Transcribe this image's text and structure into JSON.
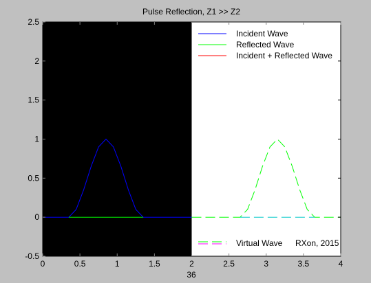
{
  "chart_data": {
    "type": "line",
    "title": "Pulse Reflection, Z1 >> Z2",
    "xlabel": "36",
    "ylabel": "",
    "xlim": [
      0,
      4
    ],
    "ylim": [
      -0.5,
      2.5
    ],
    "xticks": [
      0,
      0.5,
      1,
      1.5,
      2,
      2.5,
      3,
      3.5,
      4
    ],
    "xtick_labels": [
      "0",
      "0.5",
      "1",
      "1.5",
      "2",
      "2.5",
      "3",
      "3.5",
      "4"
    ],
    "yticks": [
      -0.5,
      0,
      0.5,
      1,
      1.5,
      2,
      2.5
    ],
    "ytick_labels": [
      "-0.5",
      "0",
      "0.5",
      "1",
      "1.5",
      "2",
      "2.5"
    ],
    "grid": false,
    "regions": [
      {
        "x_range": [
          0,
          2
        ],
        "color": "#000000"
      },
      {
        "x_range": [
          2,
          4
        ],
        "color": "#ffffff"
      }
    ],
    "series": [
      {
        "name": "Incident Wave",
        "color": "#0000ff",
        "style": "solid",
        "x": [
          0,
          0.35,
          0.45,
          0.55,
          0.65,
          0.75,
          0.85,
          0.95,
          1.05,
          1.15,
          1.25,
          1.35,
          2
        ],
        "y": [
          0,
          0,
          0.1,
          0.35,
          0.65,
          0.9,
          1.0,
          0.9,
          0.65,
          0.35,
          0.1,
          0,
          0
        ]
      },
      {
        "name": "Reflected Wave",
        "color": "#00ff00",
        "style": "solid",
        "x": [
          0.35,
          1.35
        ],
        "y": [
          0,
          0
        ]
      },
      {
        "name": "Incident + Reflected Wave",
        "color": "#ff0000",
        "style": "solid",
        "x": [],
        "y": []
      },
      {
        "name": "",
        "color": "#00ff00",
        "style": "dashed",
        "x": [
          2,
          2.65,
          2.75,
          2.85,
          2.95,
          3.05,
          3.15,
          3.25,
          3.35,
          3.45,
          3.55,
          3.65,
          4
        ],
        "y": [
          0,
          0,
          0.1,
          0.35,
          0.65,
          0.9,
          1.0,
          0.9,
          0.65,
          0.35,
          0.1,
          0,
          0
        ]
      },
      {
        "name": "",
        "color": "#00c8c8",
        "style": "dashed",
        "x": [
          2.65,
          3.65
        ],
        "y": [
          0,
          0
        ]
      }
    ],
    "legend": {
      "placement": "top-right",
      "entries": [
        {
          "label": "Incident Wave",
          "color": "#0000ff",
          "style": "solid"
        },
        {
          "label": "Reflected Wave",
          "color": "#00ff00",
          "style": "solid"
        },
        {
          "label": "Incident + Reflected Wave",
          "color": "#ff0000",
          "style": "solid"
        }
      ]
    },
    "legend2": {
      "placement": "bottom-right",
      "entries": [
        {
          "label": "Virtual Wave",
          "color_top": "#00ff00",
          "color_bottom": "#ff00ff",
          "style": "dashed"
        }
      ]
    },
    "annotation": "RXon, 2015"
  }
}
